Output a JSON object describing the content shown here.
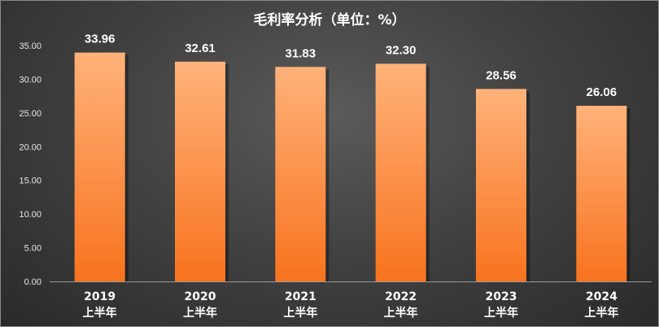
{
  "chart_data": {
    "type": "bar",
    "title": "毛利率分析（单位：%）",
    "categories": [
      [
        "2019",
        "上半年"
      ],
      [
        "2020",
        "上半年"
      ],
      [
        "2021",
        "上半年"
      ],
      [
        "2022",
        "上半年"
      ],
      [
        "2023",
        "上半年"
      ],
      [
        "2024",
        "上半年"
      ]
    ],
    "values": [
      33.96,
      32.61,
      31.83,
      32.3,
      28.56,
      26.06
    ],
    "value_labels": [
      "33.96",
      "32.61",
      "31.83",
      "32.30",
      "28.56",
      "26.06"
    ],
    "y_ticks": [
      "0.00",
      "5.00",
      "10.00",
      "15.00",
      "20.00",
      "25.00",
      "30.00",
      "35.00"
    ],
    "ylim": [
      0,
      35
    ],
    "xlabel": "",
    "ylabel": "",
    "grid": false,
    "legend": "none",
    "bar_color_light": "#ffb27a",
    "bar_color_dark": "#f8731e"
  }
}
